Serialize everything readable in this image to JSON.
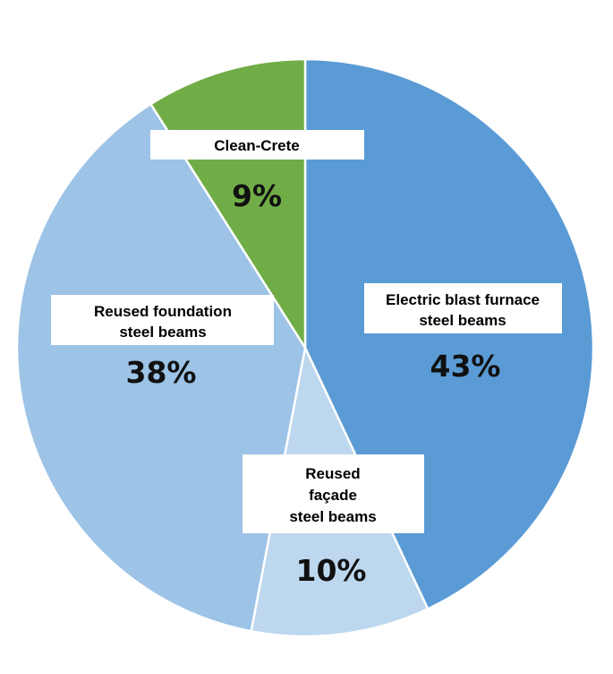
{
  "chart_data": {
    "type": "pie",
    "title": "",
    "legend": "none",
    "slices": [
      {
        "id": "electric",
        "label_lines": [
          "Electric blast furnace",
          "steel beams"
        ],
        "value": 43,
        "value_label": "43%",
        "color": "#5b9bd5"
      },
      {
        "id": "facade",
        "label_lines": [
          "Reused",
          "façade",
          "steel beams"
        ],
        "value": 10,
        "value_label": "10%",
        "color": "#bdd7ee"
      },
      {
        "id": "foundation",
        "label_lines": [
          "Reused foundation",
          "steel beams"
        ],
        "value": 38,
        "value_label": "38%",
        "color": "#9dc3e6"
      },
      {
        "id": "cleancrete",
        "label_lines": [
          "Clean-Crete"
        ],
        "value": 9,
        "value_label": "9%",
        "color": "#70ad47"
      }
    ]
  }
}
